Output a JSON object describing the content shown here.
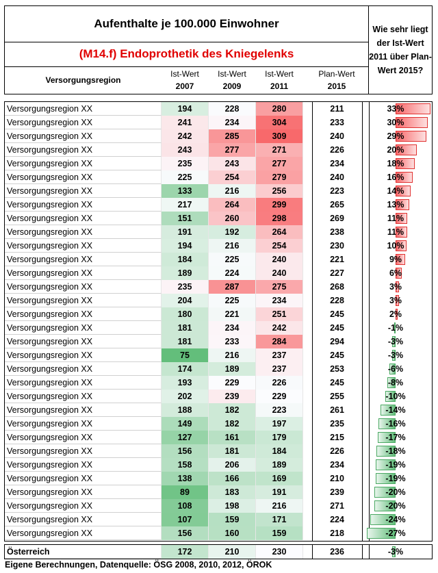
{
  "title": "Aufenthalte je 100.000 Einwohner",
  "subtitle": "(M14.f) Endoprothetik des Kniegelenks",
  "question": "Wie sehr liegt der Ist-Wert 2011 über Plan-Wert 2015?",
  "headers": {
    "region": "Versorgungsregion",
    "ist2007_a": "Ist-Wert",
    "ist2007_b": "2007",
    "ist2009_a": "Ist-Wert",
    "ist2009_b": "2009",
    "ist2011_a": "Ist-Wert",
    "ist2011_b": "2011",
    "plan_a": "Plan-Wert",
    "plan_b": "2015"
  },
  "rows": [
    {
      "region": "Versorgungsregion XX",
      "i2007": 194,
      "i2009": 228,
      "i2011": 280,
      "plan": 211,
      "pct": "33%",
      "p": 33
    },
    {
      "region": "Versorgungsregion XX",
      "i2007": 241,
      "i2009": 234,
      "i2011": 304,
      "plan": 233,
      "pct": "30%",
      "p": 30
    },
    {
      "region": "Versorgungsregion XX",
      "i2007": 242,
      "i2009": 285,
      "i2011": 309,
      "plan": 240,
      "pct": "29%",
      "p": 29
    },
    {
      "region": "Versorgungsregion XX",
      "i2007": 243,
      "i2009": 277,
      "i2011": 271,
      "plan": 226,
      "pct": "20%",
      "p": 20
    },
    {
      "region": "Versorgungsregion XX",
      "i2007": 235,
      "i2009": 243,
      "i2011": 277,
      "plan": 234,
      "pct": "18%",
      "p": 18
    },
    {
      "region": "Versorgungsregion XX",
      "i2007": 225,
      "i2009": 254,
      "i2011": 279,
      "plan": 240,
      "pct": "16%",
      "p": 16
    },
    {
      "region": "Versorgungsregion XX",
      "i2007": 133,
      "i2009": 216,
      "i2011": 256,
      "plan": 223,
      "pct": "14%",
      "p": 14
    },
    {
      "region": "Versorgungsregion XX",
      "i2007": 217,
      "i2009": 264,
      "i2011": 299,
      "plan": 265,
      "pct": "13%",
      "p": 13
    },
    {
      "region": "Versorgungsregion XX",
      "i2007": 151,
      "i2009": 260,
      "i2011": 298,
      "plan": 269,
      "pct": "11%",
      "p": 11
    },
    {
      "region": "Versorgungsregion XX",
      "i2007": 191,
      "i2009": 192,
      "i2011": 264,
      "plan": 238,
      "pct": "11%",
      "p": 11
    },
    {
      "region": "Versorgungsregion XX",
      "i2007": 194,
      "i2009": 216,
      "i2011": 254,
      "plan": 230,
      "pct": "10%",
      "p": 10
    },
    {
      "region": "Versorgungsregion XX",
      "i2007": 184,
      "i2009": 225,
      "i2011": 240,
      "plan": 221,
      "pct": "9%",
      "p": 9
    },
    {
      "region": "Versorgungsregion XX",
      "i2007": 189,
      "i2009": 224,
      "i2011": 240,
      "plan": 227,
      "pct": "6%",
      "p": 6
    },
    {
      "region": "Versorgungsregion XX",
      "i2007": 235,
      "i2009": 287,
      "i2011": 275,
      "plan": 268,
      "pct": "3%",
      "p": 3
    },
    {
      "region": "Versorgungsregion XX",
      "i2007": 204,
      "i2009": 225,
      "i2011": 234,
      "plan": 228,
      "pct": "3%",
      "p": 3
    },
    {
      "region": "Versorgungsregion XX",
      "i2007": 180,
      "i2009": 221,
      "i2011": 251,
      "plan": 245,
      "pct": "2%",
      "p": 2
    },
    {
      "region": "Versorgungsregion XX",
      "i2007": 181,
      "i2009": 234,
      "i2011": 242,
      "plan": 245,
      "pct": "-1%",
      "p": -1
    },
    {
      "region": "Versorgungsregion XX",
      "i2007": 181,
      "i2009": 233,
      "i2011": 284,
      "plan": 294,
      "pct": "-3%",
      "p": -3
    },
    {
      "region": "Versorgungsregion XX",
      "i2007": 75,
      "i2009": 216,
      "i2011": 237,
      "plan": 245,
      "pct": "-3%",
      "p": -3
    },
    {
      "region": "Versorgungsregion XX",
      "i2007": 174,
      "i2009": 189,
      "i2011": 237,
      "plan": 253,
      "pct": "-6%",
      "p": -6
    },
    {
      "region": "Versorgungsregion XX",
      "i2007": 193,
      "i2009": 229,
      "i2011": 226,
      "plan": 245,
      "pct": "-8%",
      "p": -8
    },
    {
      "region": "Versorgungsregion XX",
      "i2007": 202,
      "i2009": 239,
      "i2011": 229,
      "plan": 255,
      "pct": "-10%",
      "p": -10
    },
    {
      "region": "Versorgungsregion XX",
      "i2007": 188,
      "i2009": 182,
      "i2011": 223,
      "plan": 261,
      "pct": "-14%",
      "p": -14
    },
    {
      "region": "Versorgungsregion XX",
      "i2007": 149,
      "i2009": 182,
      "i2011": 197,
      "plan": 235,
      "pct": "-16%",
      "p": -16
    },
    {
      "region": "Versorgungsregion XX",
      "i2007": 127,
      "i2009": 161,
      "i2011": 179,
      "plan": 215,
      "pct": "-17%",
      "p": -17
    },
    {
      "region": "Versorgungsregion XX",
      "i2007": 156,
      "i2009": 181,
      "i2011": 184,
      "plan": 226,
      "pct": "-18%",
      "p": -18
    },
    {
      "region": "Versorgungsregion XX",
      "i2007": 158,
      "i2009": 206,
      "i2011": 189,
      "plan": 234,
      "pct": "-19%",
      "p": -19
    },
    {
      "region": "Versorgungsregion XX",
      "i2007": 138,
      "i2009": 166,
      "i2011": 169,
      "plan": 210,
      "pct": "-19%",
      "p": -19
    },
    {
      "region": "Versorgungsregion XX",
      "i2007": 89,
      "i2009": 183,
      "i2011": 191,
      "plan": 239,
      "pct": "-20%",
      "p": -20
    },
    {
      "region": "Versorgungsregion XX",
      "i2007": 108,
      "i2009": 198,
      "i2011": 216,
      "plan": 271,
      "pct": "-20%",
      "p": -20
    },
    {
      "region": "Versorgungsregion XX",
      "i2007": 107,
      "i2009": 159,
      "i2011": 171,
      "plan": 224,
      "pct": "-24%",
      "p": -24
    },
    {
      "region": "Versorgungsregion XX",
      "i2007": 156,
      "i2009": 160,
      "i2011": 159,
      "plan": 218,
      "pct": "-27%",
      "p": -27
    }
  ],
  "total": {
    "region": "Österreich",
    "i2007": 172,
    "i2009": 210,
    "i2011": 230,
    "plan": 236,
    "pct": "-3%",
    "p": -3
  },
  "footer": "Eigene Berechnungen, Datenquelle: ÖSG 2008, 2010, 2012, ÖROK",
  "colors": {
    "red": "#f8696b",
    "green": "#63be7b",
    "title_red": "#e00000"
  }
}
